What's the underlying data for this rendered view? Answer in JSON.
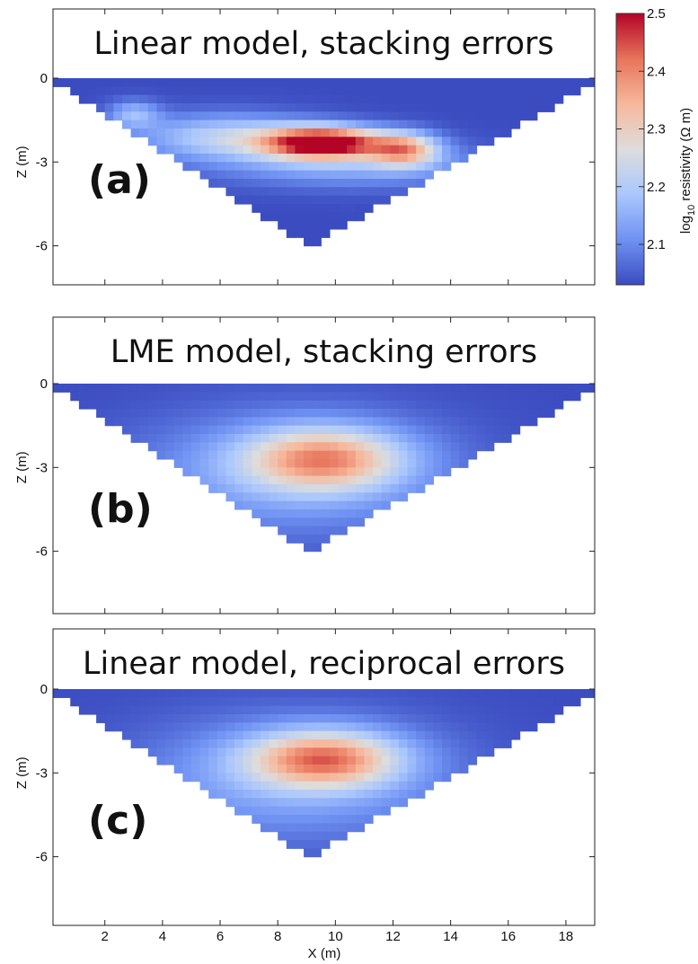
{
  "chart_data": {
    "type": "heatmap",
    "colorbar": {
      "label_parts": [
        "log",
        "10",
        " resistivity (Ω m)"
      ],
      "range": [
        2.03,
        2.5
      ],
      "ticks": [
        "2.5",
        "2.4",
        "2.3",
        "2.2",
        "2.1"
      ],
      "tick_values": [
        2.5,
        2.4,
        2.3,
        2.2,
        2.1
      ],
      "colormap": [
        "#3b4cc0",
        "#6f92f3",
        "#aac7fd",
        "#dddddd",
        "#f7b89c",
        "#e7745b",
        "#b40426"
      ]
    },
    "xaxis": {
      "label": "X (m)",
      "range": [
        0.2,
        19
      ],
      "ticks": [
        2,
        4,
        6,
        8,
        10,
        12,
        14,
        16,
        18
      ]
    },
    "yaxis": {
      "label": "Z (m)",
      "range": [
        -8,
        1.8
      ],
      "ticks": [
        0,
        -3,
        -6
      ],
      "tick_labels": [
        "0",
        "-3",
        "-6"
      ]
    },
    "domain": {
      "surface_x": [
        0.2,
        19
      ],
      "apex": [
        9.1,
        -5.9
      ]
    },
    "panels": [
      {
        "label": "(a)",
        "title": "Linear model, stacking errors",
        "background": 2.03,
        "anomalies": [
          {
            "x": 9.6,
            "z": -2.3,
            "sx": 2.0,
            "sz": 0.55,
            "amp": 0.5
          },
          {
            "x": 12.4,
            "z": -2.55,
            "sx": 1.2,
            "sz": 0.6,
            "amp": 0.28
          },
          {
            "x": 6.2,
            "z": -2.1,
            "sx": 3.0,
            "sz": 0.8,
            "amp": 0.18
          },
          {
            "x": 3.0,
            "z": -1.3,
            "sx": 0.9,
            "sz": 0.5,
            "amp": 0.13
          },
          {
            "x": 10.5,
            "z": -3.1,
            "sx": 4.5,
            "sz": 0.8,
            "amp": 0.12
          }
        ]
      },
      {
        "label": "(b)",
        "title": "LME model, stacking errors",
        "background": 2.03,
        "anomalies": [
          {
            "x": 9.6,
            "z": -2.7,
            "sx": 2.7,
            "sz": 1.1,
            "amp": 0.28
          },
          {
            "x": 8.5,
            "z": -3.2,
            "sx": 5.5,
            "sz": 2.2,
            "amp": 0.12
          }
        ]
      },
      {
        "label": "(c)",
        "title": "Linear model, reciprocal errors",
        "background": 2.03,
        "anomalies": [
          {
            "x": 9.6,
            "z": -2.5,
            "sx": 2.6,
            "sz": 1.0,
            "amp": 0.31
          },
          {
            "x": 8.5,
            "z": -3.2,
            "sx": 5.5,
            "sz": 2.2,
            "amp": 0.12
          }
        ]
      }
    ]
  }
}
